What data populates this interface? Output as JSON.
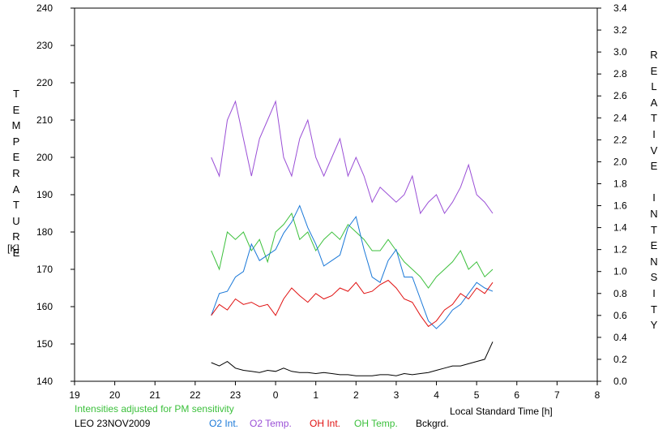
{
  "chart_data": {
    "type": "line",
    "station": "LEO 23NOV2009",
    "note": "Intensities adjusted for PM sensitivity",
    "xlabel": "Local Standard Time [h]",
    "ylabel_left": "TEMPERATURE",
    "ylabel_left_unit": "[K]",
    "ylabel_right": "RELATIVE INTENSITY",
    "x_tick_labels": [
      "19",
      "20",
      "21",
      "22",
      "23",
      "0",
      "1",
      "2",
      "3",
      "4",
      "5",
      "6",
      "7",
      "8"
    ],
    "y_left_ticks": [
      140,
      150,
      160,
      170,
      180,
      190,
      200,
      210,
      220,
      230,
      240
    ],
    "y_right_ticks": [
      0.0,
      0.2,
      0.4,
      0.6,
      0.8,
      1.0,
      1.2,
      1.4,
      1.6,
      1.8,
      2.0,
      2.2,
      2.4,
      2.6,
      2.8,
      3.0,
      3.2,
      3.4
    ],
    "xlim": [
      19,
      32
    ],
    "ylim_left": [
      140,
      240
    ],
    "ylim_right": [
      0.0,
      3.4
    ],
    "grid": false,
    "series": [
      {
        "name": "O2 Int.",
        "axis": "right",
        "color": "#1a78d8",
        "x": [
          22.4,
          22.6,
          22.8,
          23.0,
          23.2,
          23.4,
          23.6,
          23.8,
          24.0,
          24.2,
          24.4,
          24.6,
          24.8,
          25.0,
          25.2,
          25.4,
          25.6,
          25.8,
          26.0,
          26.2,
          26.4,
          26.6,
          26.8,
          27.0,
          27.2,
          27.4,
          27.6,
          27.8,
          28.0,
          28.2,
          28.4,
          28.6,
          28.8,
          29.0,
          29.2,
          29.4
        ],
        "y": [
          0.6,
          0.8,
          0.82,
          0.95,
          1.0,
          1.25,
          1.1,
          1.15,
          1.2,
          1.35,
          1.45,
          1.6,
          1.4,
          1.25,
          1.05,
          1.1,
          1.15,
          1.4,
          1.5,
          1.2,
          0.95,
          0.9,
          1.1,
          1.2,
          0.95,
          0.95,
          0.75,
          0.55,
          0.48,
          0.55,
          0.65,
          0.7,
          0.8,
          0.9,
          0.85,
          0.82
        ]
      },
      {
        "name": "O2 Temp.",
        "axis": "left",
        "color": "#9a4fd6",
        "x": [
          22.4,
          22.6,
          22.8,
          23.0,
          23.2,
          23.4,
          23.6,
          23.8,
          24.0,
          24.2,
          24.4,
          24.6,
          24.8,
          25.0,
          25.2,
          25.4,
          25.6,
          25.8,
          26.0,
          26.2,
          26.4,
          26.6,
          26.8,
          27.0,
          27.2,
          27.4,
          27.6,
          27.8,
          28.0,
          28.2,
          28.4,
          28.6,
          28.8,
          29.0,
          29.2,
          29.4
        ],
        "y": [
          200,
          195,
          210,
          215,
          205,
          195,
          205,
          210,
          215,
          200,
          195,
          205,
          210,
          200,
          195,
          200,
          205,
          195,
          200,
          195,
          188,
          192,
          190,
          188,
          190,
          195,
          185,
          188,
          190,
          185,
          188,
          192,
          198,
          190,
          188,
          185
        ]
      },
      {
        "name": "OH Int.",
        "axis": "right",
        "color": "#e01010",
        "x": [
          22.4,
          22.6,
          22.8,
          23.0,
          23.2,
          23.4,
          23.6,
          23.8,
          24.0,
          24.2,
          24.4,
          24.6,
          24.8,
          25.0,
          25.2,
          25.4,
          25.6,
          25.8,
          26.0,
          26.2,
          26.4,
          26.6,
          26.8,
          27.0,
          27.2,
          27.4,
          27.6,
          27.8,
          28.0,
          28.2,
          28.4,
          28.6,
          28.8,
          29.0,
          29.2,
          29.4
        ],
        "y": [
          0.6,
          0.7,
          0.65,
          0.75,
          0.7,
          0.72,
          0.68,
          0.7,
          0.6,
          0.75,
          0.85,
          0.78,
          0.72,
          0.8,
          0.75,
          0.78,
          0.85,
          0.82,
          0.9,
          0.8,
          0.82,
          0.88,
          0.92,
          0.85,
          0.75,
          0.72,
          0.6,
          0.5,
          0.55,
          0.65,
          0.7,
          0.8,
          0.75,
          0.85,
          0.8,
          0.9
        ]
      },
      {
        "name": "OH Temp.",
        "axis": "left",
        "color": "#3cc03c",
        "x": [
          22.4,
          22.6,
          22.8,
          23.0,
          23.2,
          23.4,
          23.6,
          23.8,
          24.0,
          24.2,
          24.4,
          24.6,
          24.8,
          25.0,
          25.2,
          25.4,
          25.6,
          25.8,
          26.0,
          26.2,
          26.4,
          26.6,
          26.8,
          27.0,
          27.2,
          27.4,
          27.6,
          27.8,
          28.0,
          28.2,
          28.4,
          28.6,
          28.8,
          29.0,
          29.2,
          29.4
        ],
        "y": [
          175,
          170,
          180,
          178,
          180,
          175,
          178,
          172,
          180,
          182,
          185,
          178,
          180,
          175,
          178,
          180,
          178,
          182,
          180,
          178,
          175,
          175,
          178,
          175,
          172,
          170,
          168,
          165,
          168,
          170,
          172,
          175,
          170,
          172,
          168,
          170
        ]
      },
      {
        "name": "Bckgrd.",
        "axis": "right",
        "color": "#000000",
        "x": [
          22.4,
          22.6,
          22.8,
          23.0,
          23.2,
          23.4,
          23.6,
          23.8,
          24.0,
          24.2,
          24.4,
          24.6,
          24.8,
          25.0,
          25.2,
          25.4,
          25.6,
          25.8,
          26.0,
          26.2,
          26.4,
          26.6,
          26.8,
          27.0,
          27.2,
          27.4,
          27.6,
          27.8,
          28.0,
          28.2,
          28.4,
          28.6,
          28.8,
          29.0,
          29.2,
          29.4
        ],
        "y": [
          0.17,
          0.14,
          0.18,
          0.12,
          0.1,
          0.09,
          0.08,
          0.1,
          0.09,
          0.12,
          0.09,
          0.08,
          0.08,
          0.07,
          0.08,
          0.07,
          0.06,
          0.06,
          0.05,
          0.05,
          0.05,
          0.06,
          0.06,
          0.05,
          0.07,
          0.06,
          0.07,
          0.08,
          0.1,
          0.12,
          0.14,
          0.14,
          0.16,
          0.18,
          0.2,
          0.36
        ]
      }
    ]
  }
}
